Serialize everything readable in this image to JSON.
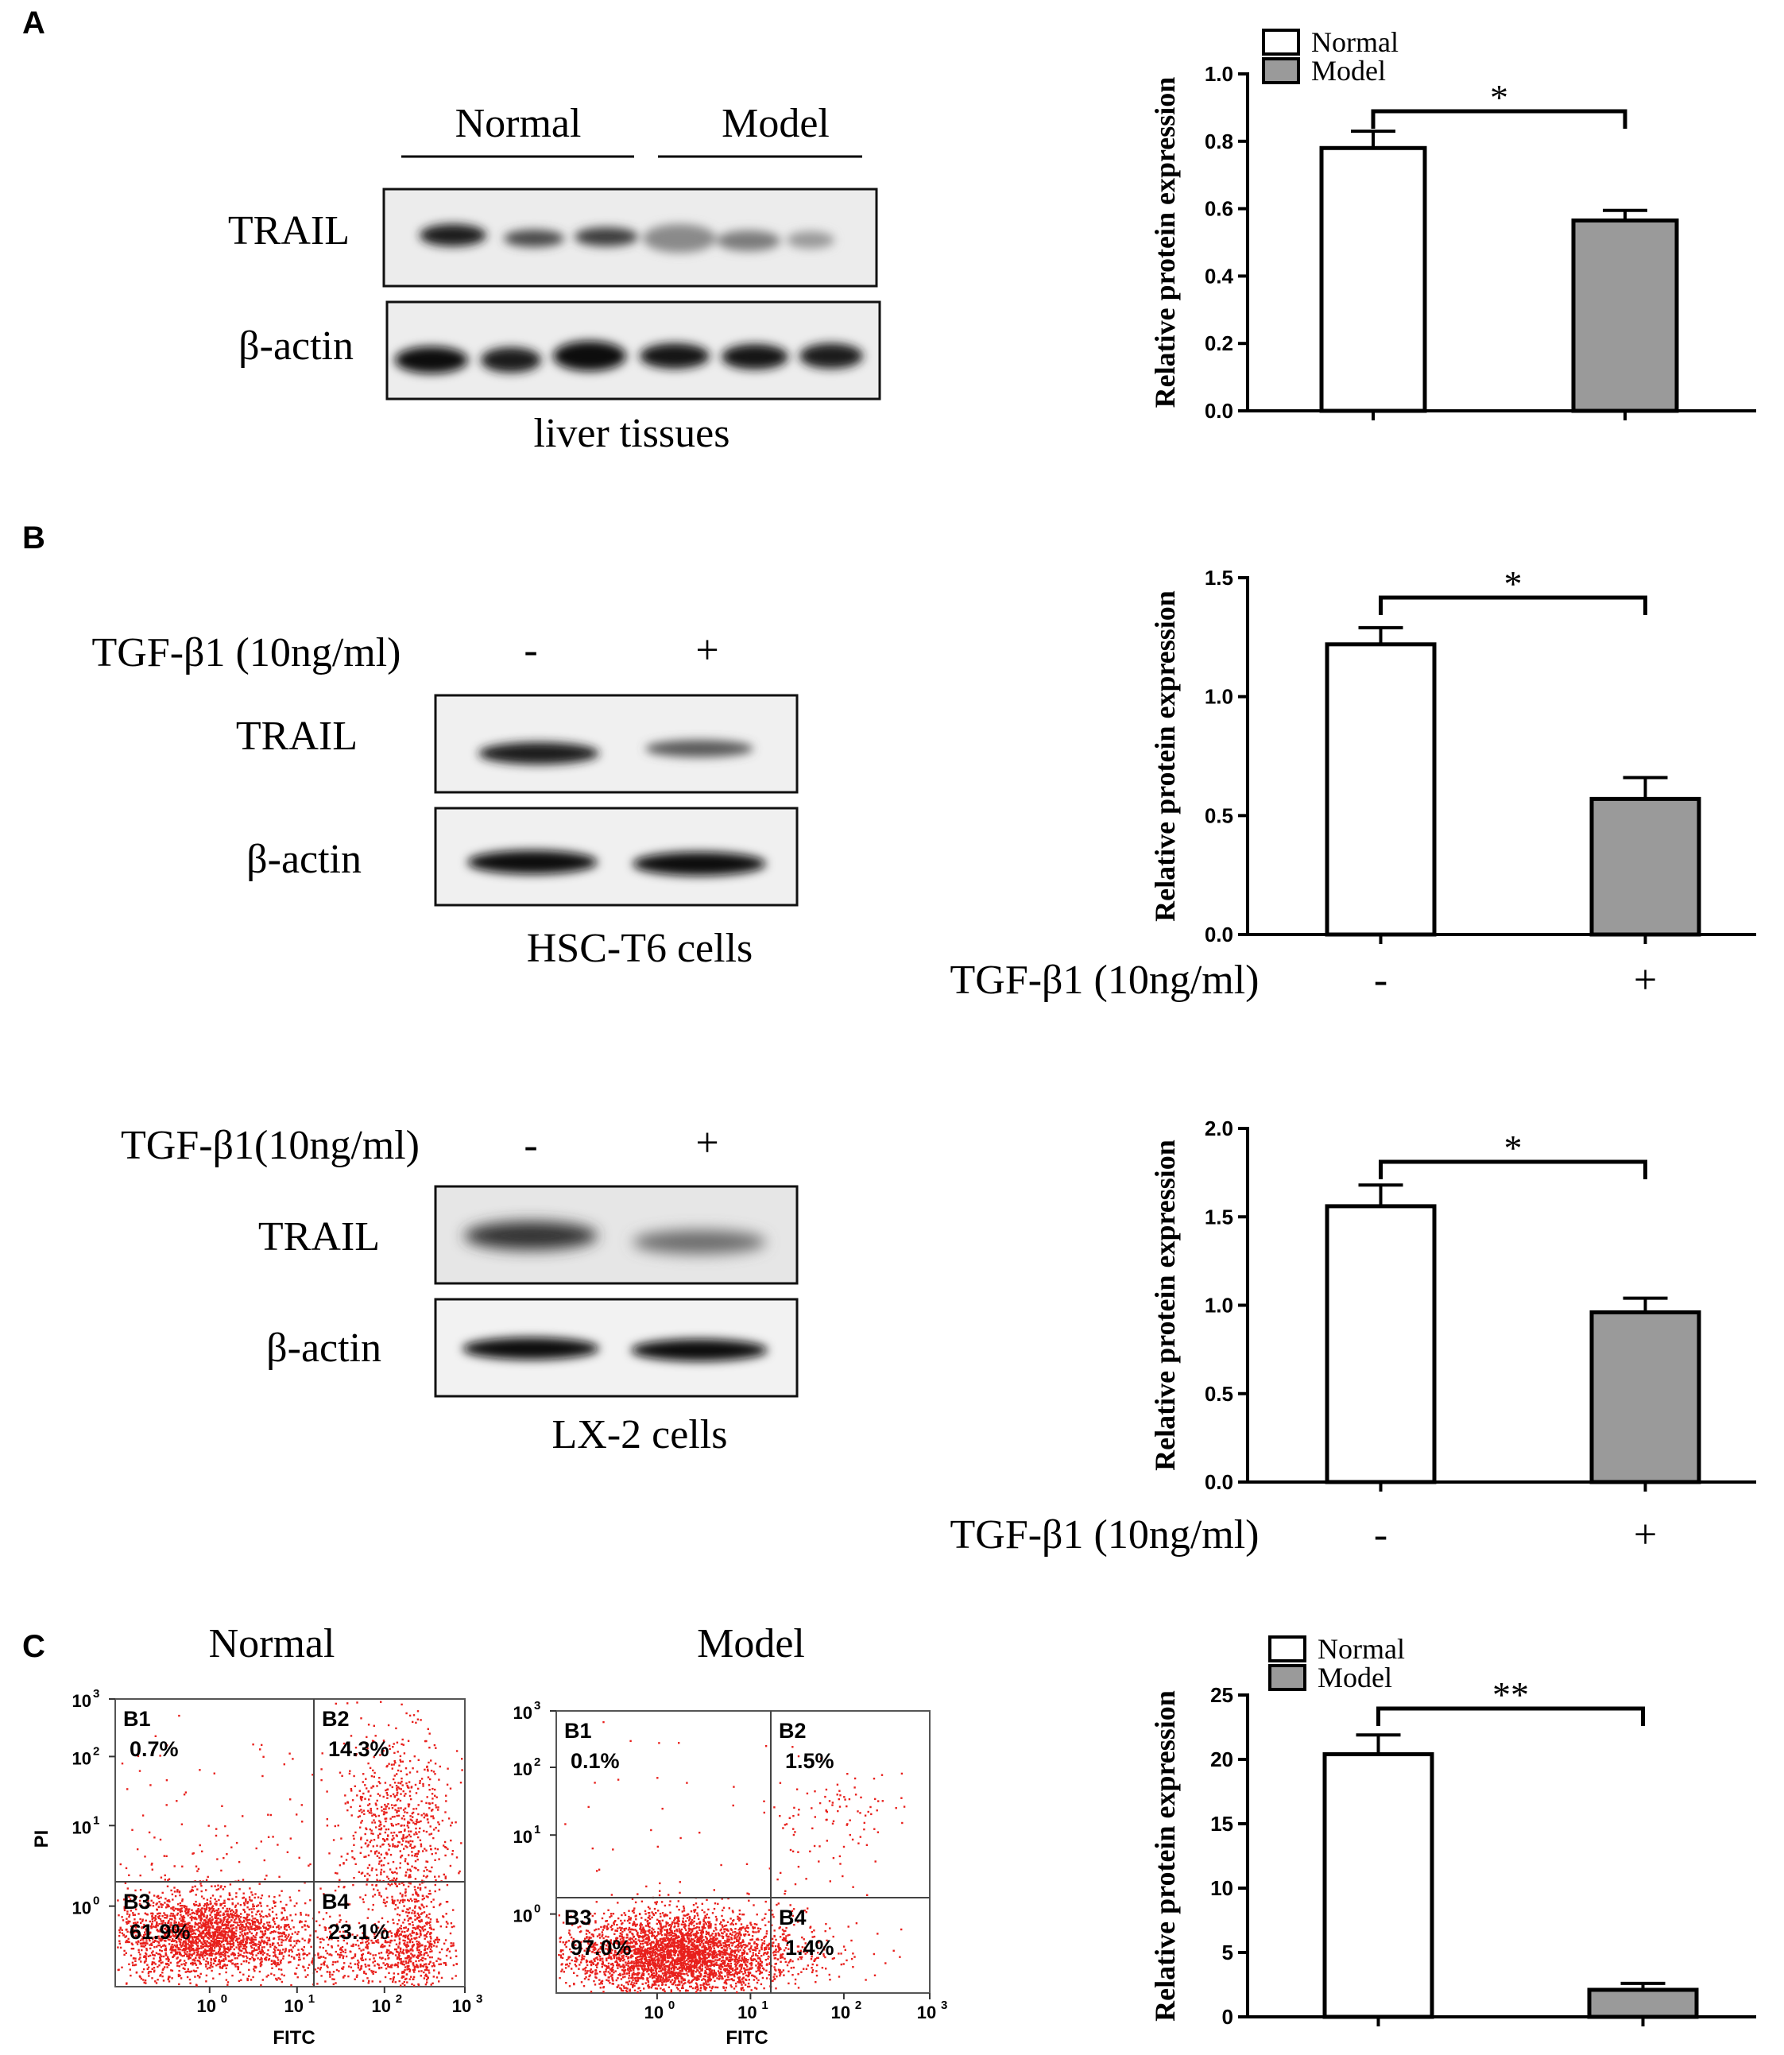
{
  "panels": {
    "a": "A",
    "b": "B",
    "c": "C"
  },
  "blot_a": {
    "group1": "Normal",
    "group2": "Model",
    "row1": "TRAIL",
    "row2": "β-actin",
    "caption": "liver tissues"
  },
  "blot_b1": {
    "treatment": "TGF-β1 (10ng/ml)",
    "minus": "-",
    "plus": "+",
    "row1": "TRAIL",
    "row2": "β-actin",
    "caption": "HSC-T6 cells"
  },
  "blot_b2": {
    "treatment": "TGF-β1(10ng/ml)",
    "minus": "-",
    "plus": "+",
    "row1": "TRAIL",
    "row2": "β-actin",
    "caption": "LX-2 cells"
  },
  "flow": {
    "plots": [
      {
        "title": "Normal",
        "xlabel": "FITC",
        "ylabel": "PI",
        "quadrants": [
          {
            "name": "B1",
            "value": "0.7%"
          },
          {
            "name": "B2",
            "value": "14.3%"
          },
          {
            "name": "B3",
            "value": "61.9%"
          },
          {
            "name": "B4",
            "value": "23.1%"
          }
        ],
        "scatter_color": "#e8201c"
      },
      {
        "title": "Model",
        "xlabel": "FITC",
        "ylabel": "",
        "quadrants": [
          {
            "name": "B1",
            "value": "0.1%"
          },
          {
            "name": "B2",
            "value": "1.5%"
          },
          {
            "name": "B3",
            "value": "97.0%"
          },
          {
            "name": "B4",
            "value": "1.4%"
          }
        ],
        "scatter_color": "#e8201c"
      }
    ],
    "xticks": [
      "10",
      "10",
      "10",
      "10"
    ],
    "xtick_exps": [
      "0",
      "1",
      "2",
      "3"
    ],
    "yticks": [
      "10",
      "10",
      "10",
      "10"
    ],
    "ytick_exps": [
      "0",
      "1",
      "2",
      "3"
    ]
  },
  "chart_data": [
    {
      "type": "bar",
      "categories": [
        "Normal",
        "Model"
      ],
      "values": [
        0.78,
        0.565
      ],
      "errors": [
        0.05,
        0.03
      ],
      "ylabel": "Relative protein expression",
      "ylim": [
        0,
        1.0
      ],
      "yticks": [
        "0.0",
        "0.2",
        "0.4",
        "0.6",
        "0.8",
        "1.0"
      ],
      "legend": [
        "Normal",
        "Model"
      ],
      "legend_position": "top",
      "significance": "*",
      "xlabel": "",
      "xticklabels": [],
      "colors": [
        "#ffffff",
        "#9a9a9a"
      ]
    },
    {
      "type": "bar",
      "categories": [
        "-",
        "+"
      ],
      "values": [
        1.22,
        0.57
      ],
      "errors": [
        0.07,
        0.09
      ],
      "ylabel": "Relative protein expression",
      "ylim": [
        0,
        1.5
      ],
      "yticks": [
        "0.0",
        "0.5",
        "1.0",
        "1.5"
      ],
      "legend": [],
      "significance": "*",
      "xlabel": "TGF-β1 (10ng/ml)",
      "xticklabels": [
        "-",
        "+"
      ],
      "colors": [
        "#ffffff",
        "#9a9a9a"
      ]
    },
    {
      "type": "bar",
      "categories": [
        "-",
        "+"
      ],
      "values": [
        1.56,
        0.96
      ],
      "errors": [
        0.12,
        0.08
      ],
      "ylabel": "Relative protein expression",
      "ylim": [
        0,
        2.0
      ],
      "yticks": [
        "0.0",
        "0.5",
        "1.0",
        "1.5",
        "2.0"
      ],
      "legend": [],
      "significance": "*",
      "xlabel": "TGF-β1 (10ng/ml)",
      "xticklabels": [
        "-",
        "+"
      ],
      "colors": [
        "#ffffff",
        "#9a9a9a"
      ]
    },
    {
      "type": "bar",
      "categories": [
        "Normal",
        "Model"
      ],
      "values": [
        20.4,
        2.1
      ],
      "errors": [
        1.5,
        0.5
      ],
      "ylabel": "Relative protein expression",
      "ylim": [
        0,
        25
      ],
      "yticks": [
        "0",
        "5",
        "10",
        "15",
        "20",
        "25"
      ],
      "legend": [
        "Normal",
        "Model"
      ],
      "legend_position": "top",
      "significance": "**",
      "xlabel": "",
      "xticklabels": [],
      "colors": [
        "#ffffff",
        "#9a9a9a"
      ]
    }
  ]
}
